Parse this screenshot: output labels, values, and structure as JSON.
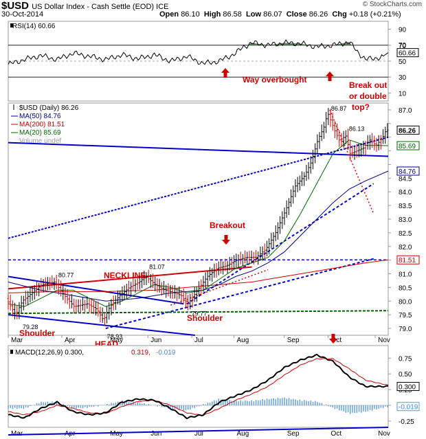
{
  "header": {
    "symbol": "$USD",
    "name": "US Dollar Index - Cash Settle (EOD)",
    "exchange": "ICE",
    "date": "30-Oct-2014",
    "open_label": "Open",
    "open": "86.10",
    "high_label": "High",
    "high": "86.58",
    "low_label": "Low",
    "low": "86.07",
    "close_label": "Close",
    "close": "86.26",
    "chg_label": "Chg",
    "chg": "+0.18 (+0.21%)",
    "watermark": "© StockCharts.com"
  },
  "colors": {
    "up_bar": "#000000",
    "down_bar": "#cc0000",
    "ma50": "#000080",
    "ma200": "#cc0000",
    "ma20": "#006600",
    "trend_blue": "#0000cc",
    "annotation_red": "#cc0000",
    "rsi_fill": "#5a7a5a",
    "macd_hist": "#5b9bd5"
  },
  "annotations": {
    "way_overbought": "Way overbought",
    "break_out": [
      "Break out",
      "or double",
      "top?"
    ],
    "breakout": "Breakout",
    "neckline": "NECKLINE",
    "shoulder_left": "Shoulder",
    "shoulder_right": "Shoulder",
    "head": "HEAD",
    "volume_label": "Volume undef"
  },
  "chart_data": [
    {
      "type": "line",
      "title": "RSI(14) 60.66",
      "legend": [
        "RSI(14) 60.66"
      ],
      "ylim": [
        0,
        100
      ],
      "yticks": [
        10,
        30,
        50,
        70,
        90
      ],
      "reference_lines": [
        30,
        50,
        70
      ],
      "last_value": "60.66",
      "extra_labels": [
        "70",
        "60.66",
        "50"
      ],
      "x": [
        0,
        10,
        20,
        30,
        40,
        50,
        60,
        70,
        80,
        90,
        100,
        110,
        120,
        130,
        140,
        145,
        150,
        160,
        170,
        180,
        190,
        200,
        210,
        215,
        220,
        230,
        234
      ],
      "y": [
        46,
        52,
        57,
        52,
        60,
        56,
        52,
        58,
        53,
        58,
        50,
        56,
        47,
        50,
        60,
        68,
        73,
        70,
        73,
        72,
        68,
        70,
        74,
        62,
        52,
        55,
        60.66
      ]
    },
    {
      "type": "line",
      "title": "$USD (Daily) 86.26",
      "legend": [
        "$USD (Daily) 86.26",
        "MA(50) 84.76",
        "MA(200) 81.51",
        "MA(20) 85.69"
      ],
      "ylim": [
        78.75,
        87.25
      ],
      "yticks": [
        79.0,
        79.5,
        80.0,
        80.5,
        81.0,
        81.5,
        82.0,
        82.5,
        83.0,
        83.5,
        84.0,
        84.5,
        85.0,
        85.5,
        86.0,
        86.5,
        87.0
      ],
      "x_labels": [
        "Mar",
        "Apr",
        "May",
        "Jun",
        "Jul",
        "Aug",
        "Sep",
        "Oct",
        "Nov"
      ],
      "x_label_pos": [
        0,
        33,
        61,
        86,
        113,
        139,
        170,
        197,
        226
      ],
      "price_labels": [
        "86.26",
        "85.69",
        "84.76",
        "81.51"
      ],
      "point_labels": [
        {
          "text": "80.77",
          "x": 30,
          "y": 80.77
        },
        {
          "text": "79.28",
          "x": 8,
          "y": 79.28
        },
        {
          "text": "78.93",
          "x": 60,
          "y": 78.93
        },
        {
          "text": "81.07",
          "x": 86,
          "y": 81.07
        },
        {
          "text": "79.77",
          "x": 112,
          "y": 79.77
        },
        {
          "text": "86.87",
          "x": 198,
          "y": 86.87
        },
        {
          "text": "86.13",
          "x": 209,
          "y": 86.13
        }
      ],
      "series": [
        {
          "name": "$USD (Daily) 86.26",
          "x": [
            0,
            6,
            10,
            16,
            22,
            30,
            36,
            42,
            50,
            56,
            60,
            64,
            70,
            76,
            82,
            86,
            92,
            98,
            104,
            108,
            112,
            118,
            124,
            130,
            136,
            142,
            148,
            154,
            160,
            166,
            172,
            178,
            184,
            188,
            192,
            196,
            198,
            202,
            206,
            209,
            212,
            216,
            220,
            224,
            228,
            232,
            234
          ],
          "y": [
            80.1,
            79.5,
            80.0,
            80.3,
            80.6,
            80.7,
            80.2,
            79.8,
            79.9,
            79.7,
            79.3,
            79.8,
            80.2,
            80.5,
            80.7,
            80.9,
            80.6,
            80.4,
            80.3,
            80.2,
            79.9,
            80.4,
            80.9,
            81.2,
            81.3,
            81.5,
            81.6,
            81.6,
            81.9,
            82.5,
            83.3,
            84.2,
            84.6,
            85.1,
            85.9,
            86.4,
            86.9,
            86.3,
            85.8,
            86.1,
            85.4,
            85.5,
            85.6,
            85.9,
            85.7,
            86.0,
            86.26
          ]
        },
        {
          "name": "MA(20) 85.69",
          "x": [
            0,
            10,
            20,
            30,
            40,
            50,
            60,
            70,
            80,
            90,
            100,
            110,
            120,
            130,
            140,
            150,
            160,
            170,
            180,
            190,
            200,
            210,
            220,
            234
          ],
          "y": [
            79.9,
            79.8,
            80.1,
            80.4,
            80.4,
            80.1,
            79.8,
            80.0,
            80.3,
            80.6,
            80.5,
            80.3,
            80.4,
            80.8,
            81.2,
            81.4,
            81.6,
            82.2,
            83.2,
            84.3,
            85.4,
            85.9,
            85.7,
            85.69
          ]
        },
        {
          "name": "MA(50) 84.76",
          "x": [
            0,
            20,
            40,
            60,
            80,
            100,
            120,
            130,
            140,
            150,
            160,
            170,
            180,
            190,
            200,
            210,
            220,
            234
          ],
          "y": [
            80.7,
            80.4,
            80.2,
            80.0,
            80.1,
            80.3,
            80.4,
            80.6,
            80.9,
            81.1,
            81.4,
            81.8,
            82.4,
            83.0,
            83.6,
            84.1,
            84.4,
            84.76
          ]
        },
        {
          "name": "MA(200) 81.51",
          "x": [
            0,
            30,
            60,
            90,
            110,
            130,
            150,
            170,
            190,
            210,
            220,
            234
          ],
          "y": [
            80.3,
            80.35,
            80.35,
            80.4,
            80.5,
            80.6,
            80.7,
            80.9,
            81.1,
            81.3,
            81.4,
            81.51
          ]
        }
      ]
    },
    {
      "type": "line",
      "title": "MACD(12,26,9) 0.300, 0.319, -0.019",
      "legend": [
        "MACD(12,26,9) 0.300,",
        "0.319,",
        "-0.019"
      ],
      "ylim": [
        -0.35,
        0.95
      ],
      "yticks": [
        -0.25,
        0.0,
        0.25,
        0.5,
        0.75
      ],
      "x_labels": [
        "Mar",
        "Apr",
        "May",
        "Jun",
        "Jul",
        "Aug",
        "Sep",
        "Oct",
        "Nov"
      ],
      "value_labels": [
        "0.300",
        "-0.019"
      ],
      "series": [
        {
          "name": "MACD",
          "x": [
            0,
            10,
            20,
            30,
            40,
            50,
            60,
            70,
            80,
            90,
            100,
            110,
            120,
            130,
            140,
            150,
            160,
            170,
            180,
            190,
            200,
            210,
            220,
            234
          ],
          "y": [
            -0.15,
            -0.2,
            -0.05,
            0.05,
            -0.1,
            -0.15,
            -0.12,
            0.05,
            0.1,
            0.08,
            -0.05,
            -0.2,
            -0.15,
            0.05,
            0.15,
            0.25,
            0.4,
            0.6,
            0.72,
            0.8,
            0.7,
            0.45,
            0.3,
            0.3
          ]
        },
        {
          "name": "Signal",
          "x": [
            0,
            10,
            20,
            30,
            40,
            50,
            60,
            70,
            80,
            90,
            100,
            110,
            120,
            130,
            140,
            150,
            160,
            170,
            180,
            190,
            200,
            210,
            220,
            234
          ],
          "y": [
            -0.1,
            -0.15,
            -0.1,
            0.0,
            -0.05,
            -0.12,
            -0.13,
            -0.02,
            0.06,
            0.08,
            0.0,
            -0.12,
            -0.16,
            -0.05,
            0.08,
            0.18,
            0.3,
            0.48,
            0.64,
            0.74,
            0.74,
            0.58,
            0.4,
            0.319
          ]
        },
        {
          "name": "Histogram",
          "x": [
            0,
            10,
            20,
            30,
            40,
            50,
            60,
            70,
            80,
            90,
            100,
            110,
            120,
            130,
            140,
            150,
            160,
            170,
            180,
            190,
            200,
            210,
            220,
            234
          ],
          "y": [
            -0.05,
            -0.05,
            0.05,
            0.05,
            -0.05,
            -0.03,
            0.01,
            0.07,
            0.04,
            0.0,
            -0.05,
            -0.08,
            0.01,
            0.1,
            0.07,
            0.07,
            0.1,
            0.12,
            0.08,
            0.06,
            -0.04,
            -0.13,
            -0.1,
            -0.019
          ]
        }
      ]
    }
  ]
}
